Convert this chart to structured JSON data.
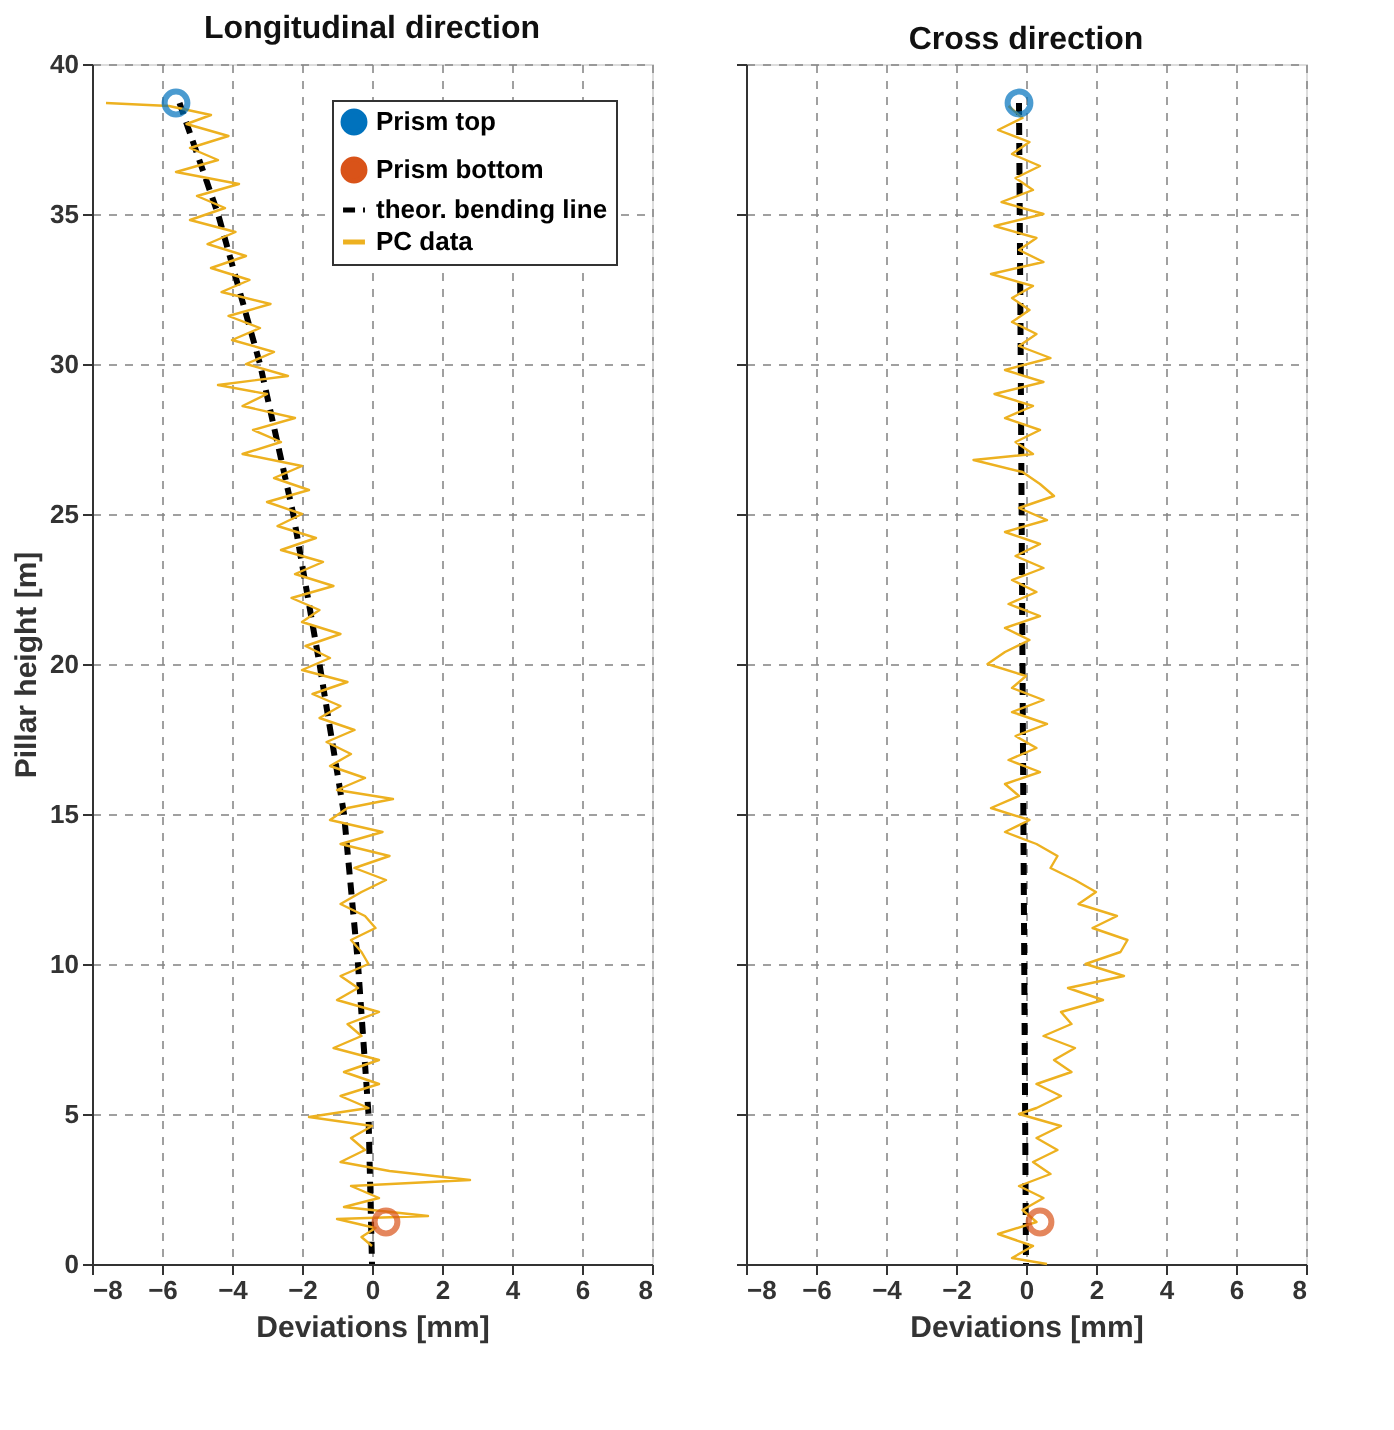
{
  "chart_data": [
    {
      "type": "line",
      "title": "Longitudinal direction",
      "xlabel": "Deviations [mm]",
      "ylabel": "Pillar height [m]",
      "xlim": [
        -8,
        8
      ],
      "xticks": [
        -8,
        -6,
        -4,
        -2,
        0,
        2,
        4,
        6,
        8
      ],
      "ylim": [
        0,
        40
      ],
      "yticks": [
        0,
        5,
        10,
        15,
        20,
        25,
        30,
        35,
        40
      ],
      "grid": true,
      "legend": "top right",
      "series": [
        {
          "name": "Prism top",
          "type": "scatter",
          "marker": "circle",
          "color": "#0072bd",
          "x": [
            -5.6
          ],
          "values": [
            38.7
          ]
        },
        {
          "name": "Prism bottom",
          "type": "scatter",
          "marker": "circle",
          "color": "#d95319",
          "x": [
            0.4
          ],
          "values": [
            1.4
          ]
        },
        {
          "name": "theor. bending line",
          "line_style": "dashed",
          "color": "#000000",
          "x": [
            -5.5,
            -4.4,
            -3.2,
            -2.25,
            -1.5,
            -0.8,
            -0.4,
            -0.1,
            0
          ],
          "values": [
            38.7,
            35,
            30,
            25,
            20,
            15,
            10,
            5,
            0
          ]
        },
        {
          "name": "PC data",
          "line_style": "solid",
          "color": "#edb120",
          "x": [
            -7.6,
            -5.8,
            -4.6,
            -5.3,
            -4.1,
            -5.2,
            -4.4,
            -5.6,
            -3.8,
            -5.0,
            -4.2,
            -5.2,
            -3.9,
            -4.7,
            -3.6,
            -4.6,
            -3.5,
            -4.3,
            -2.9,
            -4.1,
            -3.2,
            -4.0,
            -2.8,
            -3.6,
            -2.4,
            -4.4,
            -3.0,
            -3.7,
            -2.2,
            -3.4,
            -2.6,
            -3.7,
            -2.0,
            -2.8,
            -1.8,
            -3.0,
            -2.0,
            -2.7,
            -1.6,
            -2.6,
            -1.4,
            -2.2,
            -1.1,
            -2.3,
            -1.5,
            -2.0,
            -0.9,
            -1.9,
            -1.2,
            -2.0,
            -0.7,
            -1.7,
            -0.9,
            -1.5,
            -0.5,
            -1.3,
            -0.6,
            -1.2,
            -0.2,
            -1.0,
            0.6,
            -0.7,
            -1.2,
            0.3,
            -0.9,
            0.5,
            -0.5,
            0.4,
            -0.3,
            -0.9,
            -0.2,
            0.1,
            -0.6,
            -0.3,
            -0.1,
            -0.9,
            -0.4,
            -1.0,
            0.2,
            -0.7,
            -0.3,
            -1.1,
            0.2,
            -0.8,
            0.2,
            -0.9,
            -0.1,
            -1.8,
            0.0,
            -0.6,
            -0.2,
            -0.9,
            0.5,
            2.8,
            -0.6,
            0.2,
            -0.8,
            1.6,
            -1.0,
            0.1,
            -0.3,
            0.0
          ],
          "values": [
            38.7,
            38.6,
            38.3,
            38.0,
            37.6,
            37.2,
            36.8,
            36.4,
            36.0,
            35.6,
            35.2,
            34.8,
            34.4,
            34.0,
            33.6,
            33.2,
            32.8,
            32.4,
            32.0,
            31.6,
            31.2,
            30.8,
            30.4,
            30.0,
            29.6,
            29.3,
            29.0,
            28.6,
            28.2,
            27.8,
            27.4,
            27.0,
            26.6,
            26.2,
            25.8,
            25.4,
            25.0,
            24.6,
            24.2,
            23.8,
            23.4,
            23.0,
            22.6,
            22.2,
            21.8,
            21.4,
            21.0,
            20.6,
            20.2,
            19.8,
            19.4,
            19.0,
            18.6,
            18.2,
            17.8,
            17.4,
            17.0,
            16.6,
            16.2,
            15.8,
            15.5,
            15.2,
            14.8,
            14.4,
            14.0,
            13.6,
            13.2,
            12.8,
            12.4,
            12.0,
            11.6,
            11.2,
            10.8,
            10.4,
            10.0,
            9.6,
            9.2,
            8.8,
            8.4,
            8.0,
            7.6,
            7.2,
            6.8,
            6.4,
            6.0,
            5.6,
            5.2,
            4.9,
            4.6,
            4.2,
            3.8,
            3.4,
            3.1,
            2.8,
            2.6,
            2.2,
            1.9,
            1.6,
            1.5,
            1.2,
            0.9,
            0.6
          ]
        }
      ]
    },
    {
      "type": "line",
      "title": "Cross direction",
      "xlabel": "Deviations [mm]",
      "xlim": [
        -8,
        8
      ],
      "xticks": [
        -8,
        -6,
        -4,
        -2,
        0,
        2,
        4,
        6,
        8
      ],
      "ylim": [
        0,
        40
      ],
      "yticks": [
        0,
        5,
        10,
        15,
        20,
        25,
        30,
        35,
        40
      ],
      "grid": true,
      "tick_labels": "x",
      "series": [
        {
          "type": "scatter",
          "marker": "circle",
          "color": "#0072bd",
          "x": [
            -0.2
          ],
          "values": [
            38.7
          ]
        },
        {
          "type": "scatter",
          "marker": "circle",
          "color": "#d95319",
          "x": [
            0.4
          ],
          "values": [
            1.4
          ]
        },
        {
          "line_style": "dashed",
          "color": "#000000",
          "x": [
            -0.2,
            -0.15,
            -0.1,
            -0.05,
            0
          ],
          "values": [
            38.7,
            30,
            20,
            10,
            0
          ]
        },
        {
          "line_style": "solid",
          "color": "#edb120",
          "x": [
            -0.5,
            -0.1,
            -0.8,
            0.1,
            -0.4,
            0.4,
            -0.3,
            0.2,
            -0.7,
            0.5,
            -0.9,
            0.3,
            -0.2,
            0.5,
            -1.0,
            0.2,
            -0.4,
            0.1,
            -0.4,
            0.3,
            -0.2,
            0.7,
            -0.6,
            0.5,
            -0.9,
            0.2,
            -0.6,
            0.4,
            -0.3,
            0.2,
            -1.5,
            -0.1,
            0.4,
            0.8,
            -0.2,
            0.6,
            -0.6,
            0.4,
            -0.3,
            0.5,
            -0.4,
            0.3,
            -0.5,
            0.4,
            -0.6,
            0.1,
            -0.6,
            -1.1,
            0.0,
            -0.4,
            0.5,
            -0.4,
            0.6,
            -0.3,
            0.3,
            -0.5,
            0.4,
            -0.6,
            -0.2,
            -1.0,
            0.1,
            -0.6,
            0.3,
            0.9,
            0.7,
            1.4,
            2.0,
            1.5,
            2.6,
            1.9,
            2.9,
            2.7,
            1.7,
            2.8,
            1.2,
            2.2,
            1.0,
            1.3,
            0.5,
            1.4,
            0.8,
            1.3,
            0.3,
            1.0,
            0.3,
            -0.2,
            1.0,
            0.3,
            0.9,
            0.2,
            0.7,
            -0.2,
            0.5,
            -0.1,
            0.3,
            -0.8,
            0.2,
            -0.4,
            0.6
          ],
          "values": [
            38.6,
            38.2,
            37.8,
            37.4,
            37.0,
            36.6,
            36.2,
            35.8,
            35.4,
            35.0,
            34.6,
            34.2,
            33.8,
            33.4,
            33.0,
            32.6,
            32.2,
            31.8,
            31.4,
            31.0,
            30.6,
            30.2,
            29.8,
            29.4,
            29.0,
            28.6,
            28.2,
            27.8,
            27.4,
            27.0,
            26.8,
            26.4,
            26.0,
            25.6,
            25.2,
            24.8,
            24.4,
            24.0,
            23.6,
            23.2,
            22.8,
            22.4,
            22.0,
            21.6,
            21.2,
            20.8,
            20.4,
            20.0,
            19.6,
            19.2,
            18.8,
            18.4,
            18.0,
            17.6,
            17.2,
            16.8,
            16.4,
            16.0,
            15.6,
            15.2,
            14.8,
            14.4,
            14.0,
            13.6,
            13.2,
            12.8,
            12.4,
            12.0,
            11.6,
            11.2,
            10.8,
            10.4,
            10.0,
            9.6,
            9.2,
            8.8,
            8.4,
            8.0,
            7.6,
            7.2,
            6.8,
            6.4,
            6.0,
            5.6,
            5.2,
            5.0,
            4.6,
            4.2,
            3.8,
            3.4,
            3.0,
            2.6,
            2.2,
            1.8,
            1.4,
            1.0,
            0.6,
            0.2,
            0.0
          ]
        }
      ]
    }
  ]
}
